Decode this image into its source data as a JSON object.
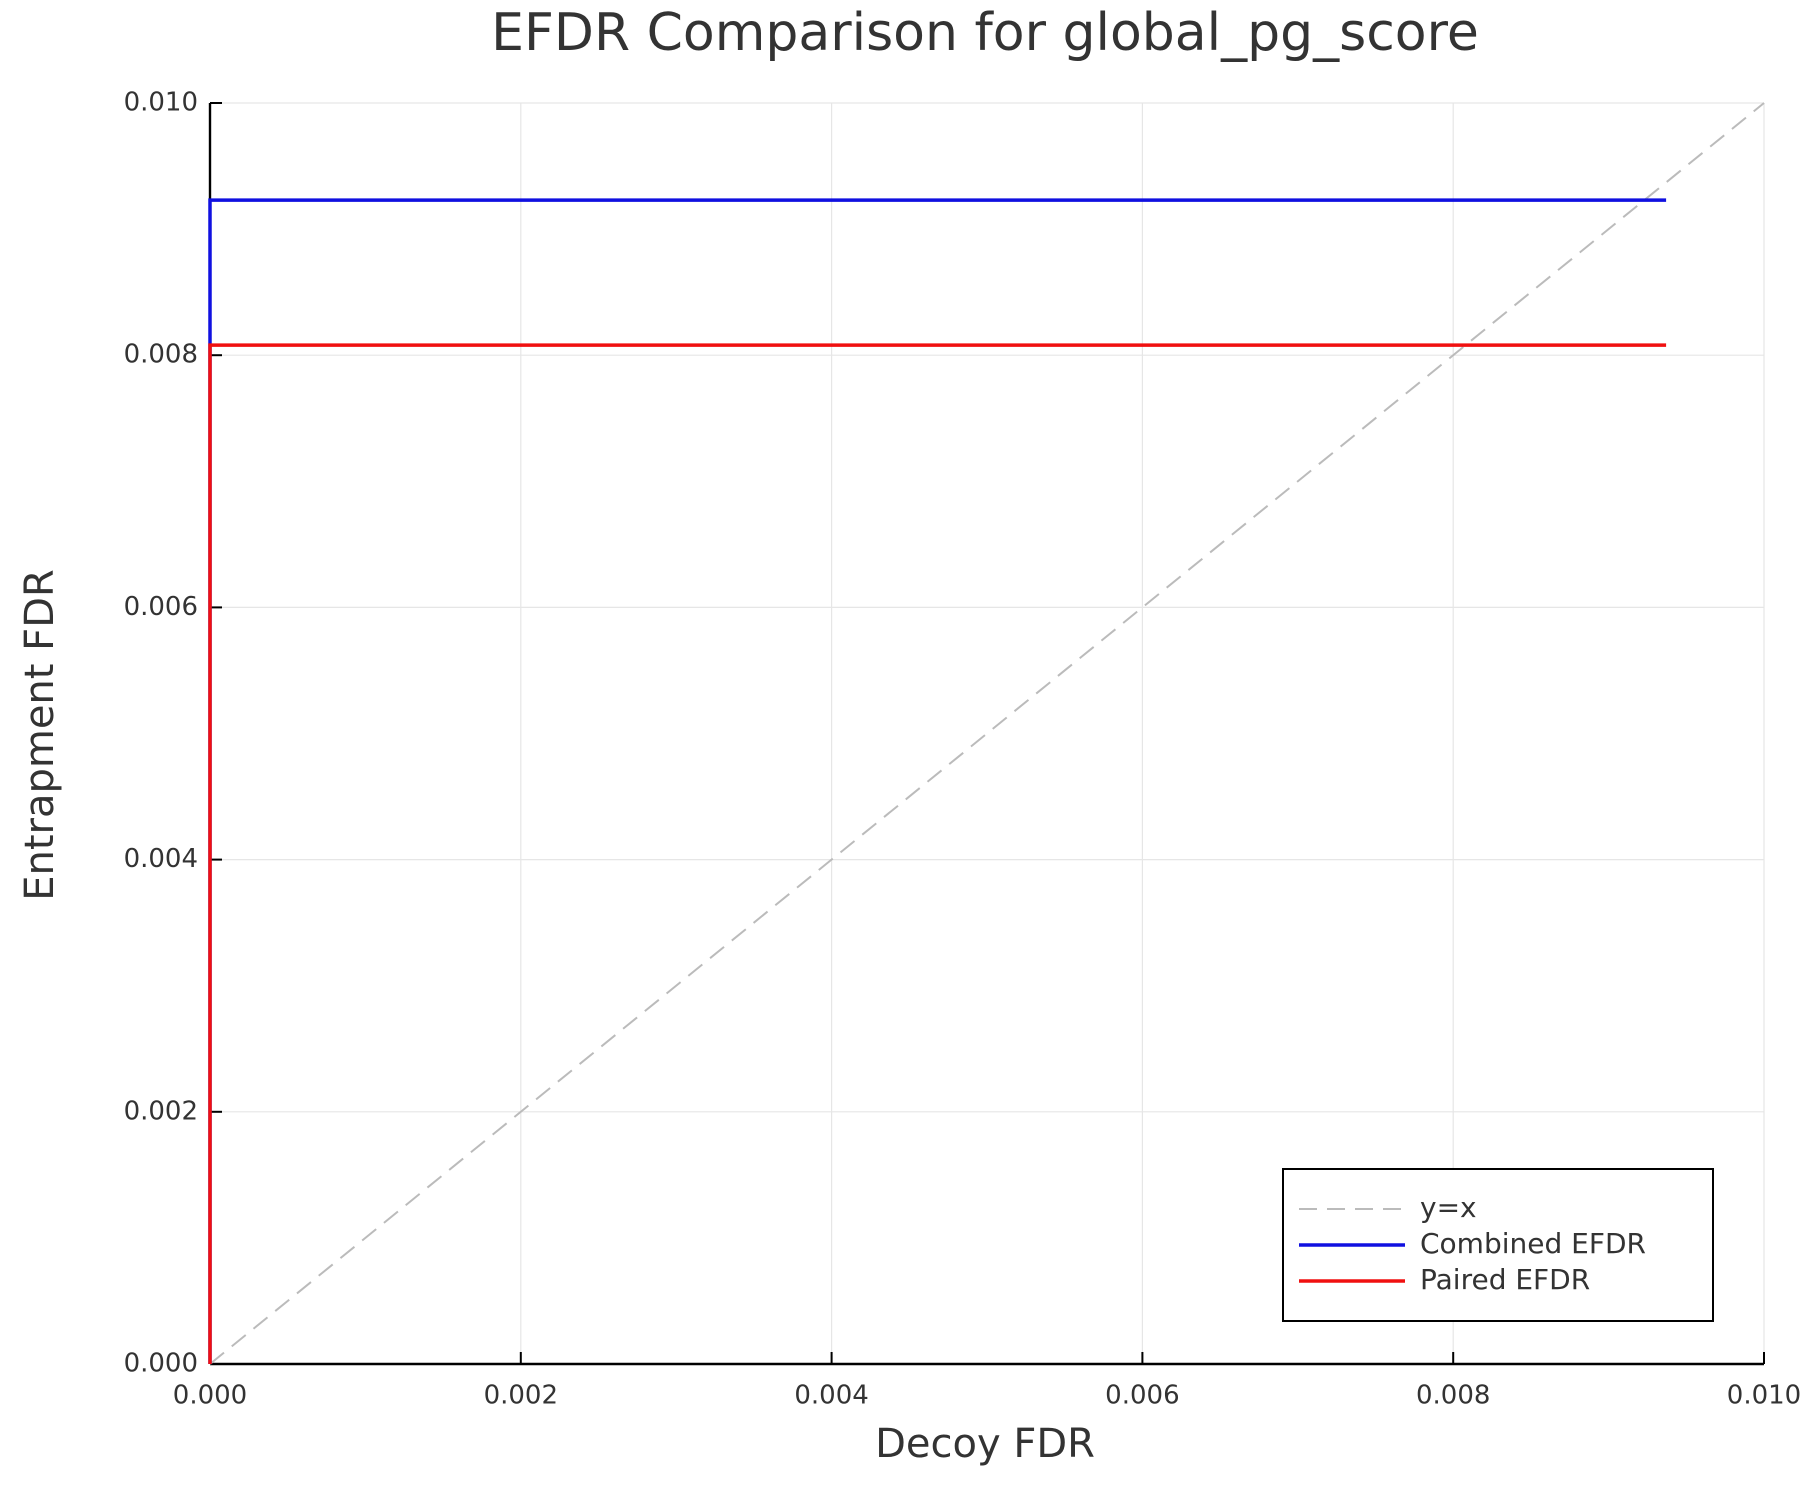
{
  "chart_data": {
    "type": "line",
    "title": "EFDR Comparison for global_pg_score",
    "x_label": "Decoy FDR",
    "y_label": "Entrapment FDR",
    "xlim": [
      0,
      0.01
    ],
    "ylim": [
      0,
      0.01
    ],
    "xticks": [
      {
        "value": 0,
        "label": "0.000"
      },
      {
        "value": 0.002,
        "label": "0.002"
      },
      {
        "value": 0.004,
        "label": "0.004"
      },
      {
        "value": 0.006,
        "label": "0.006"
      },
      {
        "value": 0.008,
        "label": "0.008"
      },
      {
        "value": 0.01,
        "label": "0.010"
      }
    ],
    "yticks": [
      {
        "value": 0,
        "label": "0.000"
      },
      {
        "value": 0.002,
        "label": "0.002"
      },
      {
        "value": 0.004,
        "label": "0.004"
      },
      {
        "value": 0.006,
        "label": "0.006"
      },
      {
        "value": 0.008,
        "label": "0.008"
      },
      {
        "value": 0.01,
        "label": "0.010"
      }
    ],
    "grid": true,
    "legend": "bottom-right",
    "series": [
      {
        "name": "y=x",
        "color": "#bbbbbb",
        "style": "dashed",
        "x": [
          0,
          0.01
        ],
        "values": [
          0,
          0.01
        ]
      },
      {
        "name": "Combined EFDR",
        "color": "#1010e0",
        "style": "solid",
        "x": [
          0,
          0,
          0.00937
        ],
        "values": [
          0,
          0.00923,
          0.00923
        ]
      },
      {
        "name": "Paired EFDR",
        "color": "#f01010",
        "style": "solid",
        "x": [
          0,
          0,
          0.00937
        ],
        "values": [
          0,
          0.00808,
          0.00808
        ]
      }
    ]
  }
}
